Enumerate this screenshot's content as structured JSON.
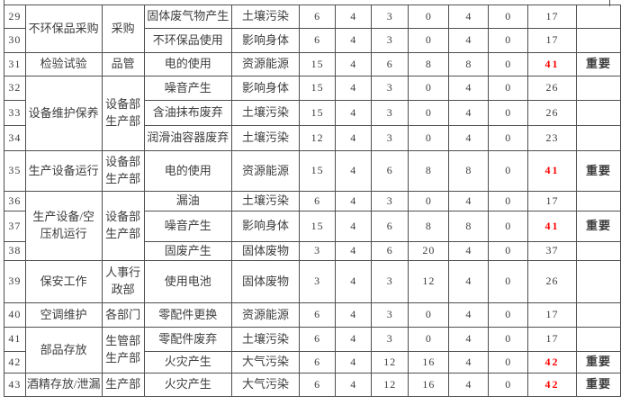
{
  "table": {
    "title_semantic": "environmental-factor-evaluation-rows-29-43",
    "importance_label": "重要",
    "accent_color_red": "#fe0000",
    "rows": [
      {
        "num": "29",
        "activity": "不环保品采购",
        "activity_rowspan": 2,
        "dept": "采购",
        "dept_rowspan": 2,
        "factor": "固体废气物产生",
        "impact": "土壤污染",
        "values": [
          "6",
          "4",
          "3",
          "0",
          "4",
          "0"
        ],
        "total": "17"
      },
      {
        "num": "30",
        "factor": "不环保品使用",
        "impact": "影响身体",
        "values": [
          "6",
          "4",
          "3",
          "0",
          "4",
          "0"
        ],
        "total": "17"
      },
      {
        "num": "31",
        "activity": "检验试验",
        "activity_rowspan": 1,
        "dept": "品管",
        "dept_rowspan": 1,
        "factor": "电的使用",
        "impact": "资源能源",
        "values": [
          "15",
          "4",
          "6",
          "8",
          "8",
          "0"
        ],
        "total": "41",
        "total_red": true,
        "importance": "重要"
      },
      {
        "num": "32",
        "activity": "设备维护保养",
        "activity_rowspan": 3,
        "dept": "设备部\n生产部",
        "dept_rowspan": 3,
        "factor": "噪音产生",
        "impact": "影响身体",
        "values": [
          "15",
          "4",
          "3",
          "0",
          "4",
          "0"
        ],
        "total": "26"
      },
      {
        "num": "33",
        "factor": "含油抹布废弃",
        "impact": "土壤污染",
        "values": [
          "15",
          "4",
          "3",
          "0",
          "4",
          "0"
        ],
        "total": "26"
      },
      {
        "num": "34",
        "factor": "润滑油容器废弃",
        "impact": "土壤污染",
        "values": [
          "12",
          "4",
          "3",
          "0",
          "4",
          "0"
        ],
        "total": "23"
      },
      {
        "num": "35",
        "activity": "生产设备运行",
        "activity_rowspan": 1,
        "dept": "设备部\n生产部",
        "dept_rowspan": 1,
        "factor": "电的使用",
        "impact": "资源能源",
        "values": [
          "15",
          "4",
          "6",
          "8",
          "8",
          "0"
        ],
        "total": "41",
        "total_red": true,
        "importance": "重要"
      },
      {
        "num": "36",
        "activity": "生产设备/空\n压机运行",
        "activity_rowspan": 3,
        "dept": "设备部\n生产部",
        "dept_rowspan": 3,
        "factor": "漏油",
        "impact": "土壤污染",
        "values": [
          "6",
          "4",
          "3",
          "0",
          "4",
          "0"
        ],
        "total": "17"
      },
      {
        "num": "37",
        "factor": "噪音产生",
        "impact": "影响身体",
        "values": [
          "15",
          "4",
          "6",
          "8",
          "8",
          "0"
        ],
        "total": "41",
        "total_red": true,
        "importance": "重要"
      },
      {
        "num": "38",
        "factor": "固废产生",
        "impact": "固体废物",
        "values": [
          "3",
          "4",
          "6",
          "20",
          "4",
          "0"
        ],
        "total": "37"
      },
      {
        "num": "39",
        "activity": "保安工作",
        "activity_rowspan": 1,
        "dept": "人事行\n政部",
        "dept_rowspan": 1,
        "factor": "使用电池",
        "impact": "固体废物",
        "values": [
          "3",
          "4",
          "3",
          "12",
          "4",
          "0"
        ],
        "total": "26"
      },
      {
        "num": "40",
        "activity": "空调维护",
        "activity_rowspan": 1,
        "dept": "各部门",
        "dept_rowspan": 1,
        "factor": "零配件更换",
        "impact": "资源能源",
        "values": [
          "6",
          "4",
          "3",
          "0",
          "4",
          "0"
        ],
        "total": "17"
      },
      {
        "num": "41",
        "activity": "部品存放",
        "activity_rowspan": 2,
        "dept": "生管部\n生产部",
        "dept_rowspan": 2,
        "factor": "零配件废弃",
        "impact": "土壤污染",
        "values": [
          "6",
          "4",
          "3",
          "0",
          "4",
          "0"
        ],
        "total": "17"
      },
      {
        "num": "42",
        "factor": "火灾产生",
        "impact": "大气污染",
        "values": [
          "6",
          "4",
          "12",
          "16",
          "4",
          "0"
        ],
        "total": "42",
        "total_red": true,
        "importance": "重要"
      },
      {
        "num": "43",
        "activity": "酒精存放/泄漏",
        "activity_rowspan": 1,
        "dept": "生产部",
        "dept_rowspan": 1,
        "factor": "火灾产生",
        "impact": "大气污染",
        "values": [
          "6",
          "4",
          "12",
          "16",
          "4",
          "0"
        ],
        "total": "42",
        "total_red": true,
        "importance": "重要"
      }
    ]
  }
}
